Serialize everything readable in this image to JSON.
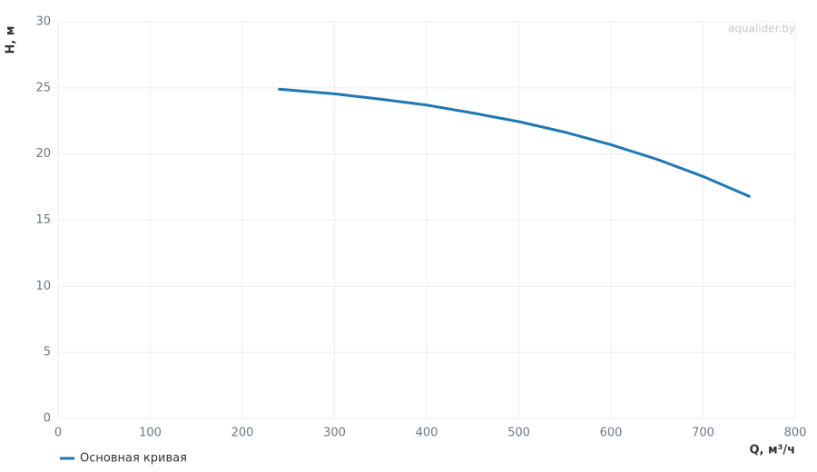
{
  "chart_data": {
    "type": "line",
    "watermark": "aqualider.by",
    "x_label": "Q, м³/ч",
    "y_label": "H, м",
    "xlim": [
      0,
      800
    ],
    "xticks": [
      0,
      100,
      200,
      300,
      400,
      500,
      600,
      700,
      800
    ],
    "ylim": [
      0,
      30
    ],
    "yticks": [
      0,
      5,
      10,
      15,
      20,
      25,
      30
    ],
    "grid": true,
    "legend": "bottom-left",
    "series": [
      {
        "name": "Основная кривая",
        "color": "#1f77b4",
        "x": [
          240,
          300,
          350,
          400,
          450,
          500,
          550,
          600,
          650,
          700,
          750
        ],
        "values": [
          24.9,
          24.55,
          24.15,
          23.7,
          23.1,
          22.45,
          21.65,
          20.7,
          19.6,
          18.3,
          16.8
        ]
      }
    ]
  }
}
